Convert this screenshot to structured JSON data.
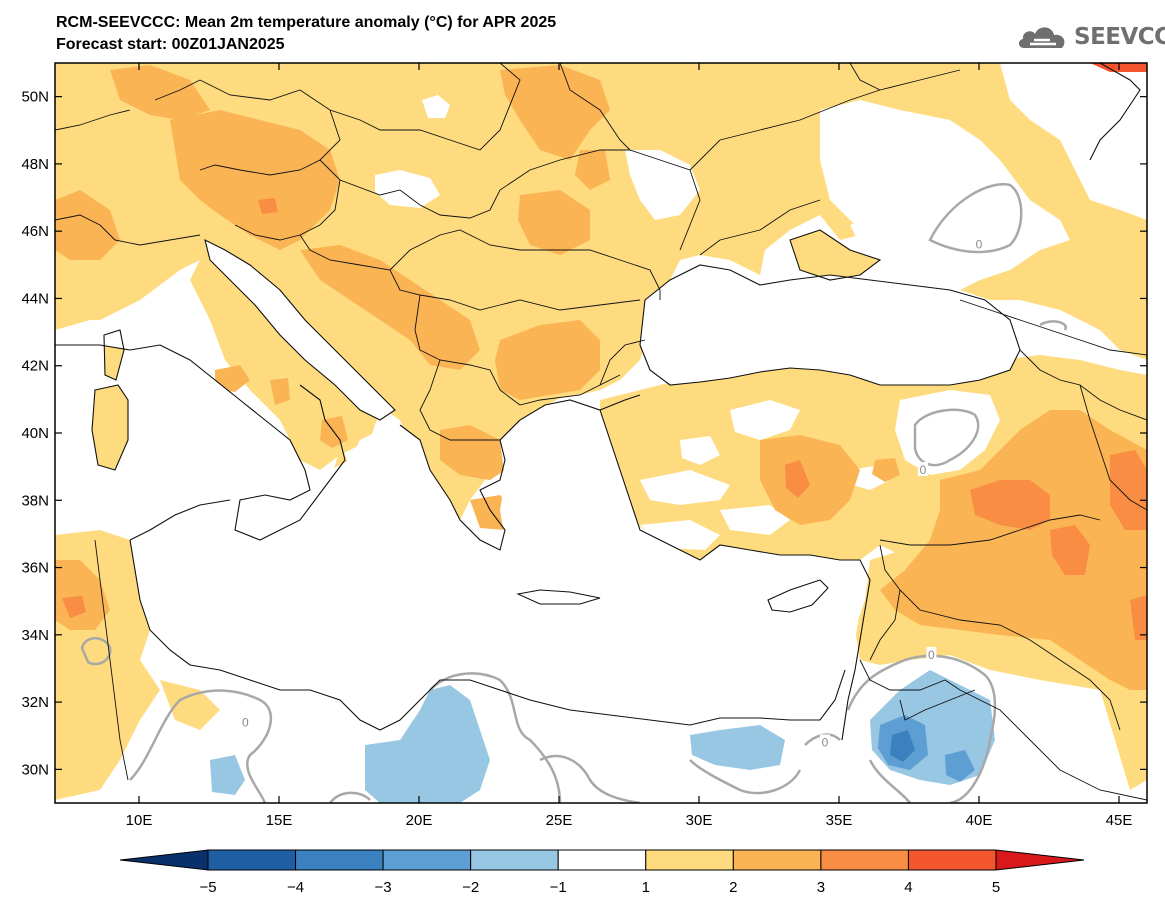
{
  "header": {
    "title_line1": "RCM-SEEVCCC: Mean 2m temperature anomaly (°C) for APR 2025",
    "title_line2": "Forecast start: 00Z01JAN2025"
  },
  "logo": {
    "icon": "cloud-icon",
    "text": "SEEVCCC",
    "color": "#6f6f6f"
  },
  "map": {
    "lon_range": [
      7,
      46
    ],
    "lat_range": [
      29,
      51
    ],
    "lat_ticks": [
      {
        "value": 50,
        "label": "50N"
      },
      {
        "value": 48,
        "label": "48N"
      },
      {
        "value": 46,
        "label": "46N"
      },
      {
        "value": 44,
        "label": "44N"
      },
      {
        "value": 42,
        "label": "42N"
      },
      {
        "value": 40,
        "label": "40N"
      },
      {
        "value": 38,
        "label": "38N"
      },
      {
        "value": 36,
        "label": "36N"
      },
      {
        "value": 34,
        "label": "34N"
      },
      {
        "value": 32,
        "label": "32N"
      },
      {
        "value": 30,
        "label": "30N"
      }
    ],
    "lon_ticks": [
      {
        "value": 10,
        "label": "10E"
      },
      {
        "value": 15,
        "label": "15E"
      },
      {
        "value": 20,
        "label": "20E"
      },
      {
        "value": 25,
        "label": "25E"
      },
      {
        "value": 30,
        "label": "30E"
      },
      {
        "value": 35,
        "label": "35E"
      },
      {
        "value": 40,
        "label": "40E"
      },
      {
        "value": 45,
        "label": "45E"
      }
    ],
    "contour_labels": [
      {
        "lon": 40.0,
        "lat": 45.6,
        "text": "0"
      },
      {
        "lon": 38.0,
        "lat": 38.9,
        "text": "0"
      },
      {
        "lon": 13.8,
        "lat": 31.4,
        "text": "0"
      },
      {
        "lon": 34.5,
        "lat": 30.8,
        "text": "0"
      },
      {
        "lon": 38.3,
        "lat": 33.4,
        "text": "0"
      }
    ]
  },
  "colorbar": {
    "ticks": [
      "−5",
      "−4",
      "−3",
      "−2",
      "−1",
      "1",
      "2",
      "3",
      "4",
      "5"
    ],
    "colors": [
      "#1f5ea3",
      "#3b81c0",
      "#5d9fd2",
      "#98c7e3",
      "#ffffff",
      "#fddb7e",
      "#fbb454",
      "#f88d43",
      "#f4542e"
    ],
    "under_color": "#08306b",
    "over_color": "#d7191c"
  },
  "legend_colors": {
    "anom_1_2": "#fddb7e",
    "anom_2_3": "#fbb454",
    "anom_3_4": "#f88d43",
    "anom_4_5": "#f4542e",
    "anom_m1_m2": "#98c7e3",
    "anom_m2_m3": "#5d9fd2",
    "contour_zero": "#a8a8a8"
  }
}
